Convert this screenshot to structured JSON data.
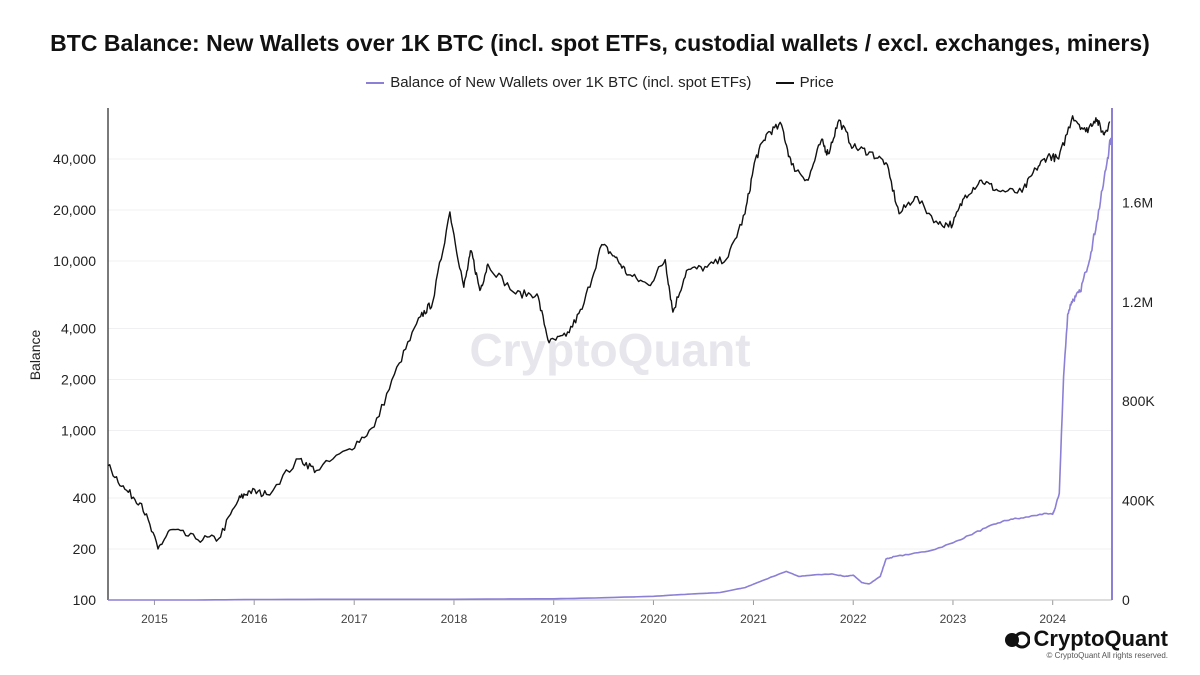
{
  "chart_data": {
    "type": "line",
    "title": "BTC Balance: New Wallets over 1K BTC (incl. spot ETFs, custodial wallets / excl. exchanges, miners)",
    "ylabel": "Balance",
    "y_scale": "log",
    "ylim": [
      100,
      80000
    ],
    "y_ticks": [
      100,
      200,
      400,
      1000,
      2000,
      4000,
      10000,
      20000,
      40000
    ],
    "y_tick_labels": [
      "100",
      "200",
      "400",
      "1,000",
      "2,000",
      "4,000",
      "10,000",
      "20,000",
      "40,000"
    ],
    "y2_scale": "linear",
    "y2lim": [
      0,
      1980000
    ],
    "y2_ticks": [
      0,
      400000,
      800000,
      1200000,
      1600000
    ],
    "y2_tick_labels": [
      "0",
      "400K",
      "800K",
      "1.2M",
      "1.6M"
    ],
    "xlim": [
      "2014-07-15",
      "2024-08-05"
    ],
    "x_ticks": [
      "2015-01-01",
      "2016-01-01",
      "2017-01-01",
      "2018-01-01",
      "2019-01-01",
      "2020-01-01",
      "2021-01-01",
      "2022-01-01",
      "2023-01-01",
      "2024-01-01"
    ],
    "x_tick_labels": [
      "2015",
      "2016",
      "2017",
      "2018",
      "2019",
      "2020",
      "2021",
      "2022",
      "2023",
      "2024"
    ],
    "legend_placement": "top-center",
    "grid": true,
    "series": [
      {
        "name": "Balance of New Wallets over 1K BTC (incl. spot ETFs)",
        "color": "#8b7fd6",
        "axis": "right",
        "x": [
          "2014-07-15",
          "2015-06-01",
          "2016-01-01",
          "2017-01-01",
          "2018-01-01",
          "2019-01-01",
          "2019-06-01",
          "2020-01-01",
          "2020-03-15",
          "2020-06-01",
          "2020-09-01",
          "2020-12-01",
          "2021-01-15",
          "2021-03-15",
          "2021-05-01",
          "2021-06-15",
          "2021-08-01",
          "2021-10-15",
          "2021-12-01",
          "2022-01-01",
          "2022-02-01",
          "2022-03-01",
          "2022-04-10",
          "2022-05-01",
          "2022-06-01",
          "2022-08-01",
          "2022-10-15",
          "2023-01-01",
          "2023-03-01",
          "2023-05-01",
          "2023-06-15",
          "2023-08-01",
          "2023-09-15",
          "2023-11-15",
          "2024-01-01",
          "2024-01-10",
          "2024-01-25",
          "2024-02-10",
          "2024-02-25",
          "2024-03-10",
          "2024-03-25",
          "2024-04-10",
          "2024-05-01",
          "2024-05-20",
          "2024-06-10",
          "2024-07-01",
          "2024-07-20",
          "2024-08-01"
        ],
        "values": [
          0,
          0,
          2000,
          3000,
          3000,
          5000,
          8000,
          15000,
          20000,
          25000,
          30000,
          50000,
          70000,
          95000,
          115000,
          95000,
          100000,
          105000,
          95000,
          100000,
          70000,
          65000,
          95000,
          165000,
          175000,
          185000,
          200000,
          230000,
          260000,
          290000,
          310000,
          325000,
          330000,
          345000,
          345000,
          370000,
          430000,
          900000,
          1150000,
          1200000,
          1220000,
          1240000,
          1320000,
          1400000,
          1520000,
          1650000,
          1780000,
          1860000
        ]
      },
      {
        "name": "Price",
        "color": "#111111",
        "axis": "left",
        "x": [
          "2014-07-15",
          "2014-09-15",
          "2014-11-15",
          "2015-01-14",
          "2015-03-01",
          "2015-06-01",
          "2015-08-24",
          "2015-11-04",
          "2015-12-15",
          "2016-02-15",
          "2016-06-15",
          "2016-08-15",
          "2016-12-15",
          "2017-03-15",
          "2017-06-15",
          "2017-09-01",
          "2017-10-15",
          "2017-12-17",
          "2018-02-06",
          "2018-03-05",
          "2018-04-06",
          "2018-05-05",
          "2018-08-15",
          "2018-11-01",
          "2018-12-15",
          "2019-02-15",
          "2019-04-15",
          "2019-06-26",
          "2019-08-15",
          "2019-10-01",
          "2019-12-15",
          "2020-02-13",
          "2020-03-12",
          "2020-05-01",
          "2020-07-15",
          "2020-10-01",
          "2020-12-01",
          "2021-01-08",
          "2021-02-21",
          "2021-04-14",
          "2021-05-20",
          "2021-07-20",
          "2021-09-06",
          "2021-10-01",
          "2021-11-10",
          "2022-01-01",
          "2022-03-01",
          "2022-05-01",
          "2022-06-18",
          "2022-08-15",
          "2022-11-09",
          "2023-01-01",
          "2023-02-15",
          "2023-04-15",
          "2023-06-15",
          "2023-09-11",
          "2023-11-01",
          "2023-12-15",
          "2024-01-23",
          "2024-03-14",
          "2024-05-01",
          "2024-06-07",
          "2024-07-05",
          "2024-07-29"
        ],
        "values": [
          620,
          450,
          370,
          200,
          260,
          230,
          230,
          390,
          440,
          420,
          680,
          580,
          780,
          1050,
          2500,
          4700,
          5700,
          19500,
          7000,
          11500,
          6700,
          9600,
          6400,
          6400,
          3300,
          3600,
          5200,
          12500,
          10500,
          8300,
          7200,
          10200,
          5000,
          8800,
          9200,
          10600,
          19000,
          40000,
          57000,
          63500,
          37000,
          30000,
          51500,
          43000,
          68000,
          47000,
          44000,
          38000,
          19000,
          24000,
          16500,
          16600,
          24500,
          30000,
          26000,
          25500,
          35000,
          42000,
          40000,
          72000,
          58000,
          70000,
          56000,
          66000
        ]
      }
    ],
    "watermark": "CryptoQuant"
  },
  "footer": {
    "brand": "CryptoQuant",
    "copyright": "© CryptoQuant All rights reserved."
  },
  "colors": {
    "accent": "#8b7fd6",
    "price": "#111111"
  }
}
